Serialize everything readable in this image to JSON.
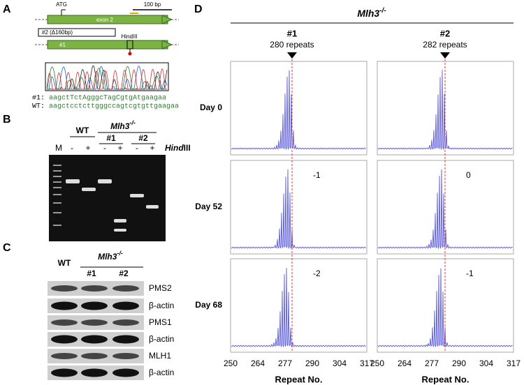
{
  "panel_a": {
    "label": "A",
    "atg": "ATG",
    "exon": "exon 2",
    "scale": "100 bp",
    "deletion_allele": "#2 (Δ160bp)",
    "site": "HindIII",
    "insertion_allele": "#1",
    "sequences": [
      {
        "name": "#1:",
        "seq": "aagctTctAgggcTagCgtgAtgaagaa"
      },
      {
        "name": "WT:",
        "seq": "aagctcctcttgggccagtcgtgttgaagaa"
      }
    ]
  },
  "panel_b": {
    "label": "B",
    "wt": "WT",
    "genotype": {
      "gene": "Mlh3",
      "sup": "-/-"
    },
    "clones": [
      "#1",
      "#2"
    ],
    "marker": "M",
    "lanes": [
      "-",
      "+",
      "-",
      "+",
      "-",
      "+"
    ],
    "enzyme": {
      "italic": "Hind",
      "rest": "III"
    }
  },
  "panel_c": {
    "label": "C",
    "wt": "WT",
    "genotype": {
      "gene": "Mlh3",
      "sup": "-/-"
    },
    "clones": [
      "#1",
      "#2"
    ],
    "blots": [
      "PMS2",
      "β-actin",
      "PMS1",
      "β-actin",
      "MLH1",
      "β-actin"
    ]
  },
  "panel_d": {
    "label": "D",
    "genotype": {
      "gene": "Mlh3",
      "sup": "-/-"
    },
    "columns": [
      {
        "clone": "#1",
        "repeats": "280 repeats",
        "shifts": [
          "-1",
          "-2"
        ]
      },
      {
        "clone": "#2",
        "repeats": "282 repeats",
        "shifts": [
          "0",
          "-1"
        ]
      }
    ],
    "rows": [
      "Day 0",
      "Day 52",
      "Day 68"
    ],
    "x_ticks": [
      "250",
      "264",
      "277",
      "290",
      "304",
      "317"
    ],
    "x_label": "Repeat No."
  }
}
